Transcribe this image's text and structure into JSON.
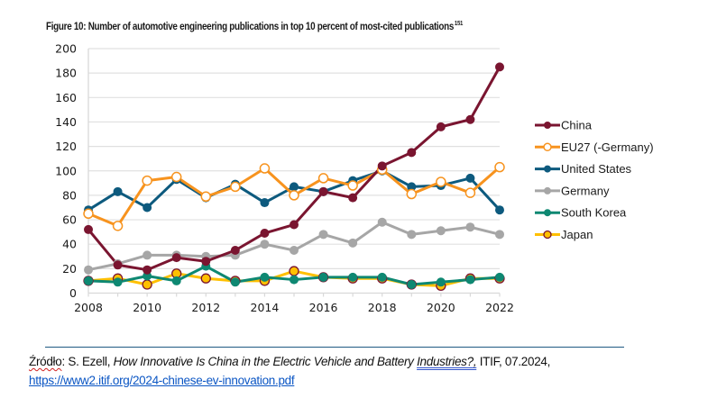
{
  "figure": {
    "title": "Figure 10: Number of automotive engineering publications in top 10 percent of most-cited publications",
    "footnote_ref": "151"
  },
  "source": {
    "label": "Źródło",
    "author": ": S. Ezell, ",
    "book_title_part1": "How Innovative Is China in the Electric Vehicle and Battery ",
    "book_title_part2": "Industries?,",
    "publisher": " ITIF, 07.2024,",
    "url": "https://www2.itif.org/2024-chinese-ev-innovation.pdf"
  },
  "chart_data": {
    "type": "line",
    "title": "Figure 10: Number of automotive engineering publications in top 10 percent of most-cited publications",
    "xlabel": "",
    "ylabel": "",
    "x": [
      2008,
      2009,
      2010,
      2011,
      2012,
      2013,
      2014,
      2015,
      2016,
      2017,
      2018,
      2019,
      2020,
      2021,
      2022
    ],
    "x_tick_labels": [
      "2008",
      "2010",
      "2012",
      "2014",
      "2016",
      "2018",
      "2020",
      "2022"
    ],
    "y_tick_labels": [
      "0",
      "20",
      "40",
      "60",
      "80",
      "100",
      "120",
      "140",
      "160",
      "180",
      "200"
    ],
    "ylim": [
      0,
      200
    ],
    "grid": true,
    "legend_position": "right",
    "series": [
      {
        "name": "China",
        "color": "#7a1530",
        "marker": "filled",
        "values": [
          52,
          23,
          19,
          29,
          26,
          35,
          49,
          56,
          83,
          78,
          104,
          115,
          136,
          142,
          185
        ]
      },
      {
        "name": "EU27 (-Germany)",
        "color": "#f7931e",
        "marker": "hollow",
        "values": [
          65,
          55,
          92,
          95,
          79,
          87,
          102,
          80,
          94,
          88,
          101,
          81,
          91,
          82,
          103
        ]
      },
      {
        "name": "United States",
        "color": "#0d5a7e",
        "marker": "filled",
        "values": [
          68,
          83,
          70,
          93,
          78,
          89,
          74,
          87,
          83,
          92,
          100,
          87,
          88,
          94,
          68
        ]
      },
      {
        "name": "Germany",
        "color": "#a6a6a6",
        "marker": "filled",
        "values": [
          19,
          24,
          31,
          31,
          30,
          31,
          40,
          35,
          48,
          41,
          58,
          48,
          51,
          54,
          48
        ]
      },
      {
        "name": "South Korea",
        "color": "#0e8872",
        "marker": "filled",
        "values": [
          10,
          9,
          14,
          10,
          22,
          9,
          13,
          11,
          13,
          13,
          13,
          7,
          9,
          11,
          13
        ]
      },
      {
        "name": "Japan",
        "color": "#ffc000",
        "marker": "ringed",
        "values": [
          10,
          12,
          7,
          16,
          12,
          10,
          10,
          18,
          13,
          12,
          12,
          7,
          6,
          12,
          12
        ]
      }
    ]
  }
}
